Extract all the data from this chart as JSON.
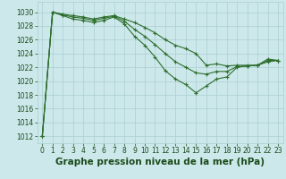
{
  "background_color": "#cce8ea",
  "grid_color": "#aacfd2",
  "line_color": "#2d6e2d",
  "title": "Graphe pression niveau de la mer (hPa)",
  "title_fontsize": 7.5,
  "tick_color": "#1a4a1a",
  "tick_fontsize": 5.5,
  "ylim": [
    1011,
    1031.5
  ],
  "xlim": [
    -0.5,
    23.5
  ],
  "yticks": [
    1012,
    1014,
    1016,
    1018,
    1020,
    1022,
    1024,
    1026,
    1028,
    1030
  ],
  "xticks": [
    0,
    1,
    2,
    3,
    4,
    5,
    6,
    7,
    8,
    9,
    10,
    11,
    12,
    13,
    14,
    15,
    16,
    17,
    18,
    19,
    20,
    21,
    22,
    23
  ],
  "series": [
    [
      1012.0,
      1030.0,
      1029.5,
      1029.0,
      1028.8,
      1028.5,
      1028.8,
      1029.3,
      1028.3,
      1026.5,
      1025.2,
      1023.5,
      1021.5,
      1020.3,
      1019.5,
      1018.3,
      1019.3,
      1020.3,
      1020.6,
      1022.0,
      1022.2,
      1022.3,
      1023.2,
      1023.0
    ],
    [
      1012.0,
      1030.0,
      1029.7,
      1029.5,
      1029.3,
      1029.0,
      1029.3,
      1029.5,
      1029.0,
      1028.5,
      1027.8,
      1027.0,
      1026.0,
      1025.2,
      1024.7,
      1024.0,
      1022.3,
      1022.5,
      1022.2,
      1022.3,
      1022.3,
      1022.3,
      1022.8,
      1023.0
    ],
    [
      1012.0,
      1030.0,
      1029.6,
      1029.3,
      1029.1,
      1028.8,
      1029.1,
      1029.4,
      1028.7,
      1027.5,
      1026.5,
      1025.3,
      1024.0,
      1022.8,
      1022.0,
      1021.2,
      1021.0,
      1021.4,
      1021.4,
      1022.1,
      1022.2,
      1022.3,
      1023.0,
      1023.0
    ]
  ]
}
